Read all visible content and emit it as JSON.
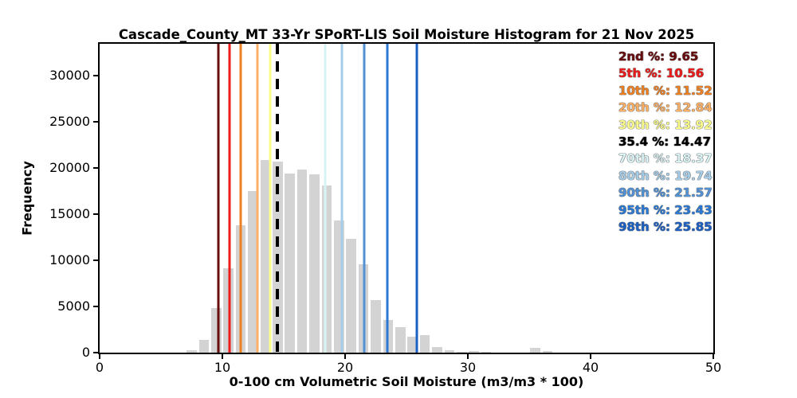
{
  "chart_data": {
    "type": "bar",
    "title": "Cascade_County_MT 33-Yr SPoRT-LIS Soil Moisture Histogram for 21 Nov 2025",
    "xlabel": "0-100 cm Volumetric Soil Moisture (m3/m3 * 100)",
    "ylabel": "Frequency",
    "xlim": [
      0,
      50
    ],
    "ylim": [
      0,
      33450
    ],
    "x_ticks": [
      0,
      10,
      20,
      30,
      40,
      50
    ],
    "y_ticks": [
      0,
      5000,
      10000,
      15000,
      20000,
      25000,
      30000
    ],
    "grid": false,
    "legend_position": "upper right",
    "bar_color": "#d3d3d3",
    "bin_width": 1,
    "bins": {
      "starts": [
        7,
        8,
        9,
        10,
        11,
        12,
        13,
        14,
        15,
        16,
        17,
        18,
        19,
        20,
        21,
        22,
        23,
        24,
        25,
        26,
        27,
        28,
        29,
        30,
        31,
        32,
        33,
        34,
        35,
        36
      ],
      "frequencies": [
        260,
        1400,
        4800,
        9100,
        13800,
        17500,
        20850,
        20700,
        19400,
        19800,
        19300,
        18100,
        14350,
        12350,
        9600,
        5650,
        3500,
        2800,
        1750,
        1900,
        620,
        270,
        90,
        150,
        80,
        0,
        0,
        0,
        480,
        150
      ]
    },
    "percentile_lines": [
      {
        "label": "2nd %",
        "value": 9.65,
        "color": "#690c0e",
        "style": "solid"
      },
      {
        "label": "5th %",
        "value": 10.56,
        "color": "#ec1c1c",
        "style": "solid"
      },
      {
        "label": "10th %",
        "value": 11.52,
        "color": "#ee8022",
        "style": "solid"
      },
      {
        "label": "20th %",
        "value": 12.84,
        "color": "#fbb065",
        "style": "solid"
      },
      {
        "label": "30th %",
        "value": 13.92,
        "color": "#fbfd8b",
        "style": "solid"
      },
      {
        "label": "35.4 %",
        "value": 14.47,
        "color": "#000000",
        "style": "dashed"
      },
      {
        "label": "70th %",
        "value": 18.37,
        "color": "#d9f3f5",
        "style": "solid"
      },
      {
        "label": "80th %",
        "value": 19.74,
        "color": "#a5cde8",
        "style": "solid"
      },
      {
        "label": "90th %",
        "value": 21.57,
        "color": "#5191d6",
        "style": "solid"
      },
      {
        "label": "95th %",
        "value": 23.43,
        "color": "#2b79d2",
        "style": "solid"
      },
      {
        "label": "98th %",
        "value": 25.85,
        "color": "#1c60c4",
        "style": "solid"
      }
    ]
  }
}
